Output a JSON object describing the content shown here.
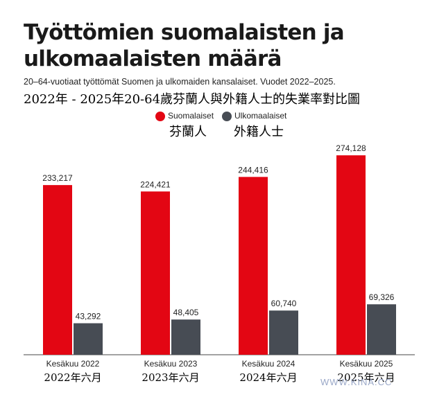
{
  "header": {
    "title": "Työttömien suomalaisten ja ulkomaalaisten määrä",
    "subtitle": "20–64-vuotiaat työttömät Suomen ja ulkomaiden kansalaiset. Vuodet 2022–2025.",
    "cn_title": "2022年 - 2025年20-64歲芬蘭人與外籍人士的失業率對比圖"
  },
  "colors": {
    "suomalaiset": "#e30613",
    "ulkomaalaiset": "#474c54",
    "axis": "#444444"
  },
  "chart_data": {
    "type": "bar",
    "title": "Työttömien suomalaisten ja ulkomaalaisten määrä",
    "xlabel": "",
    "ylabel": "",
    "ylim": [
      0,
      300000
    ],
    "categories": [
      "Kesäkuu 2022",
      "Kesäkuu 2023",
      "Kesäkuu 2024",
      "Kesäkuu 2025"
    ],
    "categories_cn": [
      "2022年六月",
      "2023年六月",
      "2024年六月",
      "2025年六月"
    ],
    "series": [
      {
        "name": "Suomalaiset",
        "name_cn": "芬蘭人",
        "values": [
          233217,
          224421,
          244416,
          274128
        ],
        "labels": [
          "233,217",
          "224,421",
          "244,416",
          "274,128"
        ]
      },
      {
        "name": "Ulkomaalaiset",
        "name_cn": "外籍人士",
        "values": [
          43292,
          48405,
          60740,
          69326
        ],
        "labels": [
          "43,292",
          "48,405",
          "60,740",
          "69,326"
        ]
      }
    ],
    "legend": "top-center",
    "grid": false
  },
  "watermark": "WWW.KINA.CC"
}
